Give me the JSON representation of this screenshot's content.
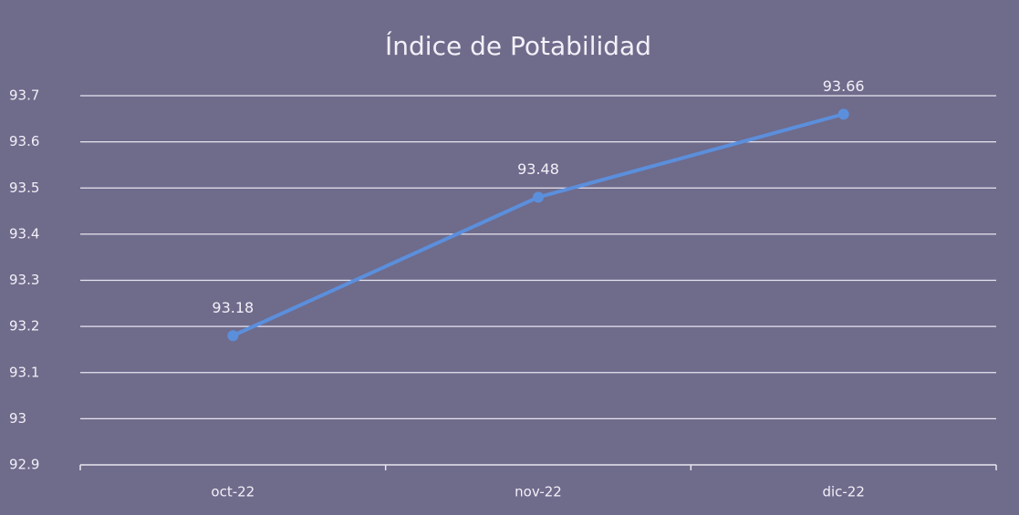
{
  "chart_data": {
    "type": "line",
    "title": "Índice de Potabilidad",
    "categories": [
      "oct-22",
      "nov-22",
      "dic-22"
    ],
    "series": [
      {
        "name": "Índice de Potabilidad",
        "color": "#5b8fdc",
        "values": [
          93.18,
          93.48,
          93.66
        ]
      }
    ],
    "ylim": [
      92.9,
      93.7
    ],
    "yticks": [
      92.9,
      93,
      93.1,
      93.2,
      93.3,
      93.4,
      93.5,
      93.6,
      93.7
    ],
    "grid": true,
    "legend": false,
    "data_labels": true
  }
}
